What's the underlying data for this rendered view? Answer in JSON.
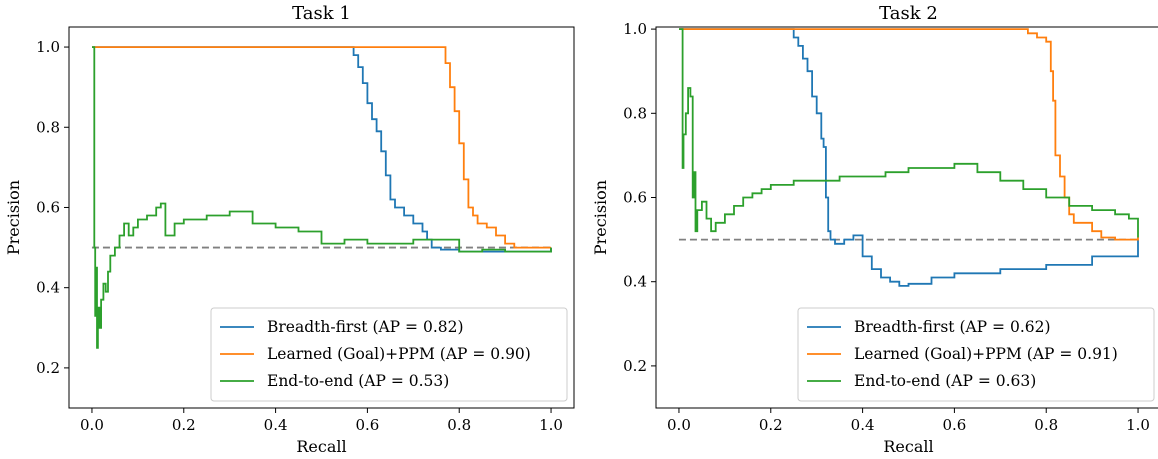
{
  "chart_data": [
    {
      "type": "line",
      "title": "Task 1",
      "xlabel": "Recall",
      "ylabel": "Precision",
      "xlim": [
        -0.05,
        1.05
      ],
      "ylim": [
        0.1,
        1.05
      ],
      "xticks": [
        0.0,
        0.2,
        0.4,
        0.6,
        0.8,
        1.0
      ],
      "xtick_labels": [
        "0.0",
        "0.2",
        "0.4",
        "0.6",
        "0.8",
        "1.0"
      ],
      "yticks": [
        0.2,
        0.4,
        0.6,
        0.8,
        1.0
      ],
      "ytick_labels": [
        "0.2",
        "0.4",
        "0.6",
        "0.8",
        "1.0"
      ],
      "grid": false,
      "legend_position": "lower-right",
      "baseline": {
        "y": 0.5,
        "x": [
          0.0,
          1.0
        ],
        "color": "#808080",
        "style": "dashed"
      },
      "series": [
        {
          "name": "Breadth-first (AP = 0.82)",
          "color": "#1f77b4",
          "x": [
            0.0,
            0.56,
            0.57,
            0.58,
            0.59,
            0.6,
            0.61,
            0.62,
            0.63,
            0.64,
            0.65,
            0.66,
            0.68,
            0.7,
            0.72,
            0.73,
            0.74,
            0.76,
            0.8,
            0.9,
            1.0
          ],
          "y": [
            1.0,
            1.0,
            0.98,
            0.95,
            0.91,
            0.86,
            0.82,
            0.79,
            0.74,
            0.68,
            0.62,
            0.6,
            0.58,
            0.56,
            0.54,
            0.52,
            0.5,
            0.495,
            0.49,
            0.49,
            0.5
          ]
        },
        {
          "name": "Learned (Goal)+PPM (AP = 0.90)",
          "color": "#ff7f0e",
          "x": [
            0.0,
            0.76,
            0.77,
            0.78,
            0.79,
            0.8,
            0.81,
            0.82,
            0.83,
            0.84,
            0.86,
            0.88,
            0.9,
            0.92,
            0.95,
            1.0
          ],
          "y": [
            1.0,
            1.0,
            0.96,
            0.9,
            0.84,
            0.76,
            0.67,
            0.6,
            0.58,
            0.56,
            0.55,
            0.53,
            0.51,
            0.5,
            0.5,
            0.5
          ]
        },
        {
          "name": "End-to-end (AP = 0.53)",
          "color": "#2ca02c",
          "x": [
            0.0,
            0.003,
            0.005,
            0.007,
            0.009,
            0.011,
            0.013,
            0.016,
            0.02,
            0.025,
            0.03,
            0.035,
            0.04,
            0.05,
            0.06,
            0.07,
            0.08,
            0.09,
            0.1,
            0.12,
            0.14,
            0.15,
            0.16,
            0.18,
            0.2,
            0.25,
            0.3,
            0.35,
            0.4,
            0.45,
            0.5,
            0.55,
            0.6,
            0.7,
            0.8,
            0.85,
            0.9,
            1.0
          ],
          "y": [
            1.0,
            1.0,
            0.5,
            0.33,
            0.45,
            0.25,
            0.35,
            0.3,
            0.37,
            0.41,
            0.39,
            0.44,
            0.48,
            0.5,
            0.53,
            0.56,
            0.53,
            0.55,
            0.57,
            0.58,
            0.6,
            0.61,
            0.53,
            0.56,
            0.57,
            0.58,
            0.59,
            0.56,
            0.55,
            0.54,
            0.51,
            0.52,
            0.51,
            0.52,
            0.49,
            0.495,
            0.49,
            0.5
          ]
        }
      ]
    },
    {
      "type": "line",
      "title": "Task 2",
      "xlabel": "Recall",
      "ylabel": "Precision",
      "xlim": [
        -0.05,
        1.05
      ],
      "ylim": [
        0.1,
        1.005
      ],
      "xticks": [
        0.0,
        0.2,
        0.4,
        0.6,
        0.8,
        1.0
      ],
      "xtick_labels": [
        "0.0",
        "0.2",
        "0.4",
        "0.6",
        "0.8",
        "1.0"
      ],
      "yticks": [
        0.2,
        0.4,
        0.6,
        0.8,
        1.0
      ],
      "ytick_labels": [
        "0.2",
        "0.4",
        "0.6",
        "0.8",
        "1.0"
      ],
      "grid": false,
      "legend_position": "lower-right",
      "baseline": {
        "y": 0.5,
        "x": [
          0.0,
          1.0
        ],
        "color": "#808080",
        "style": "dashed"
      },
      "series": [
        {
          "name": "Breadth-first (AP = 0.62)",
          "color": "#1f77b4",
          "x": [
            0.0,
            0.24,
            0.25,
            0.26,
            0.27,
            0.28,
            0.29,
            0.3,
            0.31,
            0.315,
            0.32,
            0.325,
            0.33,
            0.34,
            0.36,
            0.38,
            0.4,
            0.42,
            0.44,
            0.46,
            0.48,
            0.5,
            0.55,
            0.6,
            0.7,
            0.8,
            0.9,
            1.0
          ],
          "y": [
            1.0,
            1.0,
            0.98,
            0.96,
            0.93,
            0.9,
            0.84,
            0.8,
            0.74,
            0.72,
            0.6,
            0.52,
            0.5,
            0.49,
            0.5,
            0.51,
            0.46,
            0.43,
            0.41,
            0.4,
            0.39,
            0.395,
            0.41,
            0.42,
            0.43,
            0.44,
            0.46,
            0.5
          ]
        },
        {
          "name": "Learned (Goal)+PPM (AP = 0.91)",
          "color": "#ff7f0e",
          "x": [
            0.0,
            0.72,
            0.76,
            0.78,
            0.8,
            0.81,
            0.815,
            0.82,
            0.83,
            0.84,
            0.85,
            0.86,
            0.9,
            0.92,
            0.95,
            1.0
          ],
          "y": [
            1.0,
            1.0,
            0.99,
            0.98,
            0.97,
            0.9,
            0.83,
            0.7,
            0.65,
            0.6,
            0.56,
            0.54,
            0.52,
            0.505,
            0.5,
            0.505
          ]
        },
        {
          "name": "End-to-end (AP = 0.63)",
          "color": "#2ca02c",
          "x": [
            0.0,
            0.005,
            0.008,
            0.01,
            0.015,
            0.02,
            0.025,
            0.03,
            0.033,
            0.036,
            0.04,
            0.05,
            0.06,
            0.07,
            0.08,
            0.1,
            0.12,
            0.14,
            0.16,
            0.18,
            0.2,
            0.25,
            0.3,
            0.35,
            0.4,
            0.45,
            0.5,
            0.55,
            0.6,
            0.65,
            0.7,
            0.75,
            0.8,
            0.85,
            0.9,
            0.95,
            0.98,
            1.0
          ],
          "y": [
            1.0,
            1.0,
            0.67,
            0.75,
            0.8,
            0.86,
            0.84,
            0.6,
            0.66,
            0.52,
            0.57,
            0.59,
            0.55,
            0.52,
            0.54,
            0.56,
            0.58,
            0.6,
            0.61,
            0.62,
            0.63,
            0.64,
            0.64,
            0.65,
            0.65,
            0.66,
            0.67,
            0.67,
            0.68,
            0.66,
            0.64,
            0.62,
            0.6,
            0.58,
            0.57,
            0.56,
            0.55,
            0.505
          ]
        }
      ]
    }
  ]
}
